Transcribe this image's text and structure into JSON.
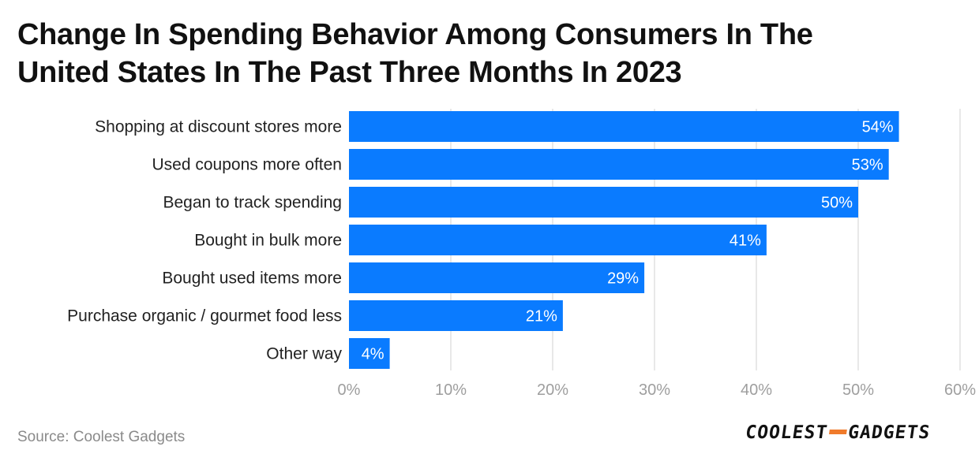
{
  "title_lines": [
    "Change In Spending Behavior Among Consumers In The",
    "United States In The Past Three Months In 2023"
  ],
  "source": "Source: Coolest Gadgets",
  "logo": {
    "left": "COOLEST",
    "right": "GADGETS"
  },
  "colors": {
    "bar": "#0a7bff",
    "grid": "#e0e0e0",
    "logo_dash": "#f07b2b"
  },
  "chart_data": {
    "type": "bar",
    "orientation": "horizontal",
    "title": "Change In Spending Behavior Among Consumers In The United States In The Past Three Months In 2023",
    "categories": [
      "Shopping at discount stores more",
      "Used coupons more often",
      "Began to track spending",
      "Bought in bulk more",
      "Bought used items more",
      "Purchase organic / gourmet food less",
      "Other way"
    ],
    "values": [
      54,
      53,
      50,
      41,
      29,
      21,
      4
    ],
    "value_labels": [
      "54%",
      "53%",
      "50%",
      "41%",
      "29%",
      "21%",
      "4%"
    ],
    "xlim": [
      0,
      60
    ],
    "xticks": [
      0,
      10,
      20,
      30,
      40,
      50,
      60
    ],
    "xtick_labels": [
      "0%",
      "10%",
      "20%",
      "30%",
      "40%",
      "50%",
      "60%"
    ],
    "xlabel": "",
    "ylabel": "",
    "grid": true,
    "legend": "none"
  }
}
